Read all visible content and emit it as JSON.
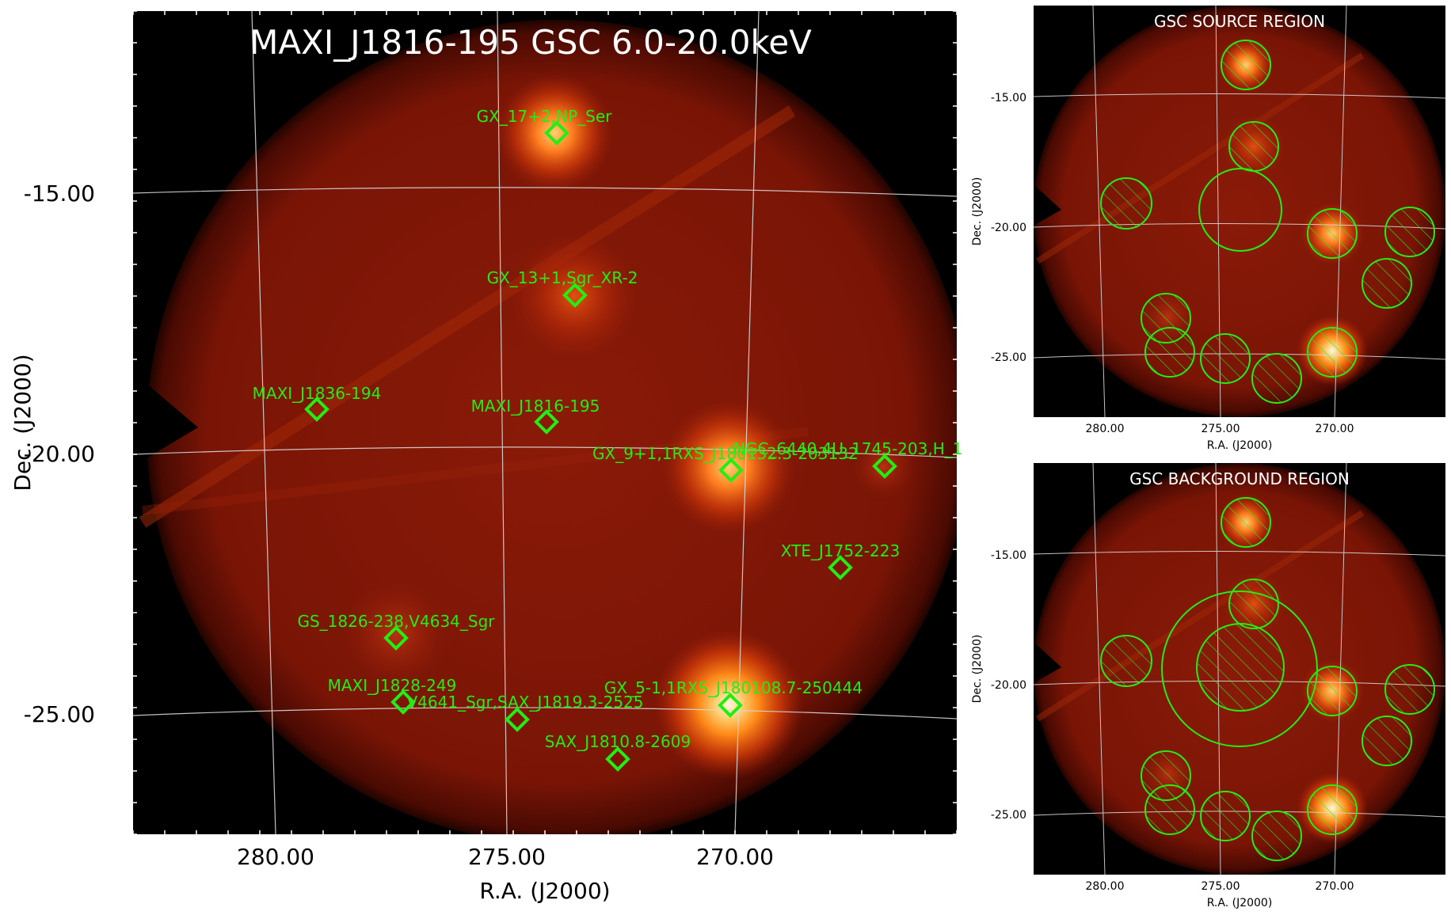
{
  "main_panel": {
    "title": "MAXI_J1816-195 GSC 6.0-20.0keV",
    "xlabel": "R.A. (J2000)",
    "ylabel": "Dec. (J2000)",
    "x_ticks": [
      "280.00",
      "275.00",
      "270.00"
    ],
    "y_ticks": [
      "-15.00",
      "-20.00",
      "-25.00"
    ],
    "marker_color": "#22ee11",
    "sources": [
      {
        "label": "GX_17+2,NP_Ser"
      },
      {
        "label": "GX_13+1,Sgr_XR-2"
      },
      {
        "label": "MAXI_J1836-194"
      },
      {
        "label": "MAXI_J1816-195"
      },
      {
        "label": "GX_9+1,1RXS_J180132.3-203132"
      },
      {
        "label": "NGC_6440,4U_1745-203,H_1"
      },
      {
        "label": "XTE_J1752-223"
      },
      {
        "label": "GS_1826-238,V4634_Sgr"
      },
      {
        "label": "MAXI_J1828-249"
      },
      {
        "label": "V4641_Sgr,SAX_J1819.3-2525"
      },
      {
        "label": "GX_5-1,1RXS_J180108.7-250444"
      },
      {
        "label": "SAX_J1810.8-2609"
      }
    ]
  },
  "source_region_panel": {
    "title": "GSC SOURCE REGION",
    "xlabel": "R.A. (J2000)",
    "ylabel": "Dec. (J2000)",
    "x_ticks": [
      "280.00",
      "275.00",
      "270.00"
    ],
    "y_ticks": [
      "-15.00",
      "-20.00",
      "-25.00"
    ]
  },
  "background_region_panel": {
    "title": "GSC BACKGROUND REGION",
    "xlabel": "R.A. (J2000)",
    "ylabel": "Dec. (J2000)",
    "x_ticks": [
      "280.00",
      "275.00",
      "270.00"
    ],
    "y_ticks": [
      "-15.00",
      "-20.00",
      "-25.00"
    ]
  }
}
